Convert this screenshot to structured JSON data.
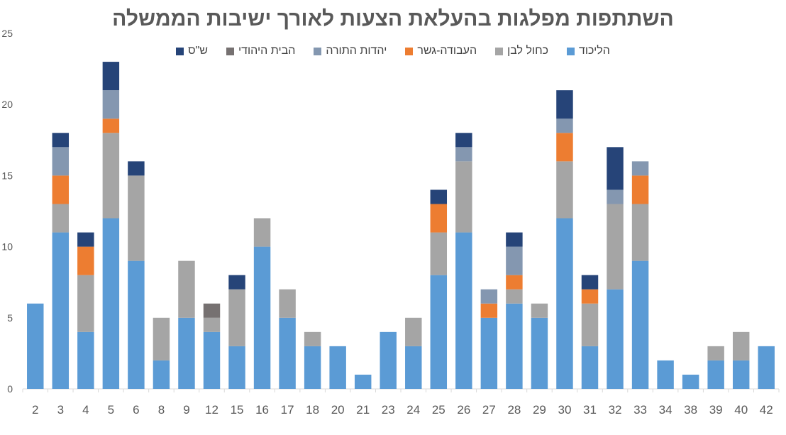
{
  "chart_data": {
    "type": "bar",
    "stacked": true,
    "title": "השתתפות מפלגות בהעלאת הצעות לאורך ישיבות הממשלה",
    "xlabel": "",
    "ylabel": "",
    "ylim": [
      0,
      25
    ],
    "yticks": [
      0,
      5,
      10,
      15,
      20,
      25
    ],
    "grid": false,
    "legend_position": "top",
    "categories": [
      "2",
      "3",
      "4",
      "5",
      "6",
      "8",
      "9",
      "12",
      "15",
      "16",
      "17",
      "18",
      "20",
      "21",
      "23",
      "24",
      "25",
      "26",
      "27",
      "28",
      "29",
      "30",
      "31",
      "32",
      "33",
      "34",
      "38",
      "39",
      "40",
      "42"
    ],
    "series": [
      {
        "name": "הליכוד",
        "color": "#5B9BD5",
        "values": [
          6,
          11,
          4,
          12,
          9,
          2,
          5,
          4,
          3,
          10,
          5,
          3,
          3,
          1,
          4,
          3,
          8,
          11,
          5,
          6,
          5,
          12,
          3,
          7,
          9,
          2,
          1,
          2,
          2,
          3
        ]
      },
      {
        "name": "כחול לבן",
        "color": "#A5A5A5",
        "values": [
          0,
          2,
          4,
          6,
          6,
          3,
          4,
          1,
          4,
          2,
          2,
          1,
          0,
          0,
          0,
          2,
          3,
          5,
          0,
          1,
          1,
          4,
          3,
          6,
          4,
          0,
          0,
          1,
          2,
          0
        ]
      },
      {
        "name": "העבודה-גשר",
        "color": "#ED7D31",
        "values": [
          0,
          2,
          2,
          1,
          0,
          0,
          0,
          0,
          0,
          0,
          0,
          0,
          0,
          0,
          0,
          0,
          2,
          0,
          1,
          1,
          0,
          2,
          1,
          0,
          2,
          0,
          0,
          0,
          0,
          0
        ]
      },
      {
        "name": "יהדות התורה",
        "color": "#8497B0",
        "values": [
          0,
          2,
          0,
          2,
          0,
          0,
          0,
          0,
          0,
          0,
          0,
          0,
          0,
          0,
          0,
          0,
          0,
          1,
          1,
          2,
          0,
          1,
          0,
          1,
          1,
          0,
          0,
          0,
          0,
          0
        ]
      },
      {
        "name": "הבית היהודי",
        "color": "#767171",
        "values": [
          0,
          0,
          0,
          0,
          0,
          0,
          0,
          1,
          0,
          0,
          0,
          0,
          0,
          0,
          0,
          0,
          0,
          0,
          0,
          0,
          0,
          0,
          0,
          0,
          0,
          0,
          0,
          0,
          0,
          0
        ]
      },
      {
        "name": "ש\"ס",
        "color": "#264478",
        "values": [
          0,
          1,
          1,
          2,
          1,
          0,
          0,
          0,
          1,
          0,
          0,
          0,
          0,
          0,
          0,
          0,
          1,
          1,
          0,
          1,
          0,
          2,
          1,
          3,
          0,
          0,
          0,
          0,
          0,
          0
        ]
      }
    ]
  }
}
